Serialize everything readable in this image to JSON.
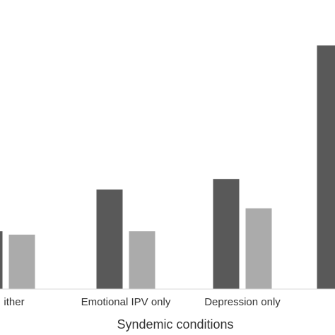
{
  "chart_data": {
    "type": "bar",
    "categories": [
      "ither",
      "Emotional IPV only",
      "Depression only",
      ""
    ],
    "series": [
      {
        "color": "#595959",
        "values": [
          1.36,
          2.34,
          2.59,
          5.73
        ]
      },
      {
        "color": "#ababab",
        "values": [
          1.28,
          1.36,
          1.9,
          null
        ]
      }
    ],
    "xlabel": "Syndemic conditions",
    "ylabel": "",
    "ylim": [
      0,
      6.8
    ],
    "grid": false,
    "legend": "none"
  }
}
